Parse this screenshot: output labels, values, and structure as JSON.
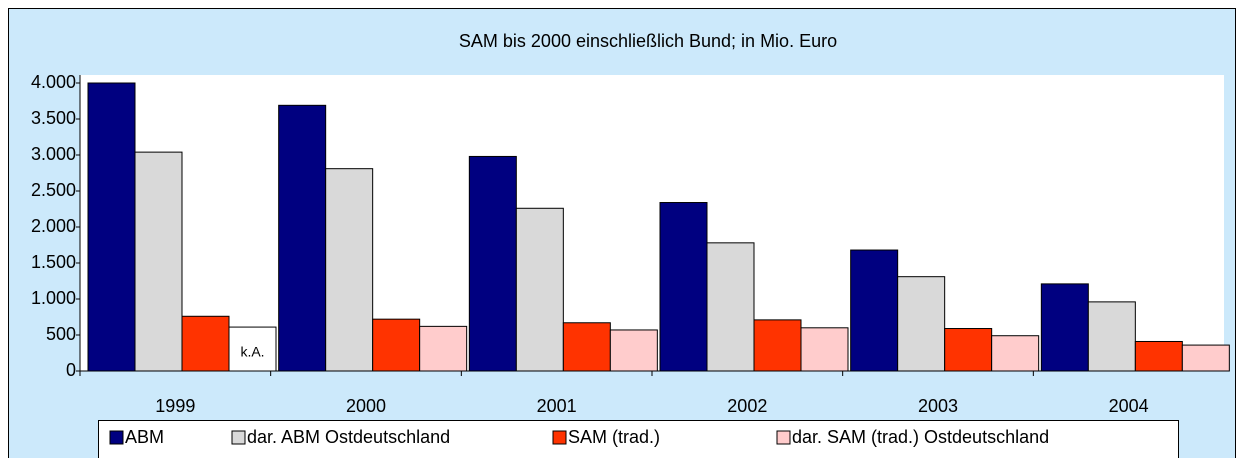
{
  "chart_data": {
    "type": "bar",
    "title": "SAM bis 2000 einschließlich Bund; in Mio. Euro",
    "categories": [
      "1999",
      "2000",
      "2001",
      "2002",
      "2003",
      "2004"
    ],
    "series": [
      {
        "name": "ABM",
        "color": "#000080",
        "values": [
          4000,
          3690,
          2980,
          2340,
          1680,
          1210
        ]
      },
      {
        "name": "dar. ABM Ostdeutschland",
        "color": "#d9d9d9",
        "values": [
          3040,
          2810,
          2260,
          1780,
          1310,
          960
        ]
      },
      {
        "name": "SAM (trad.)",
        "color": "#ff3300",
        "values": [
          760,
          720,
          670,
          710,
          590,
          410
        ]
      },
      {
        "name": "dar. SAM (trad.) Ostdeutschland",
        "color": "#ffcccc",
        "values": [
          610,
          620,
          570,
          600,
          490,
          360
        ],
        "point_colors": [
          "#ffffff",
          null,
          null,
          null,
          null,
          null
        ]
      }
    ],
    "annotations": [
      {
        "text": "k.A.",
        "series": 3,
        "category": 0
      }
    ],
    "ylim": [
      0,
      4000
    ],
    "yticks": [
      0,
      500,
      {
        "value": 1000,
        "label": "1.000"
      },
      {
        "value": 1500,
        "label": "1.500"
      },
      {
        "value": 2000,
        "label": "2.000"
      },
      {
        "value": 2500,
        "label": "2.500"
      },
      {
        "value": 3000,
        "label": "3.000"
      },
      {
        "value": 3500,
        "label": "3.500"
      },
      {
        "value": 4000,
        "label": "4.000"
      }
    ],
    "grid": false,
    "legend": "bottom"
  }
}
